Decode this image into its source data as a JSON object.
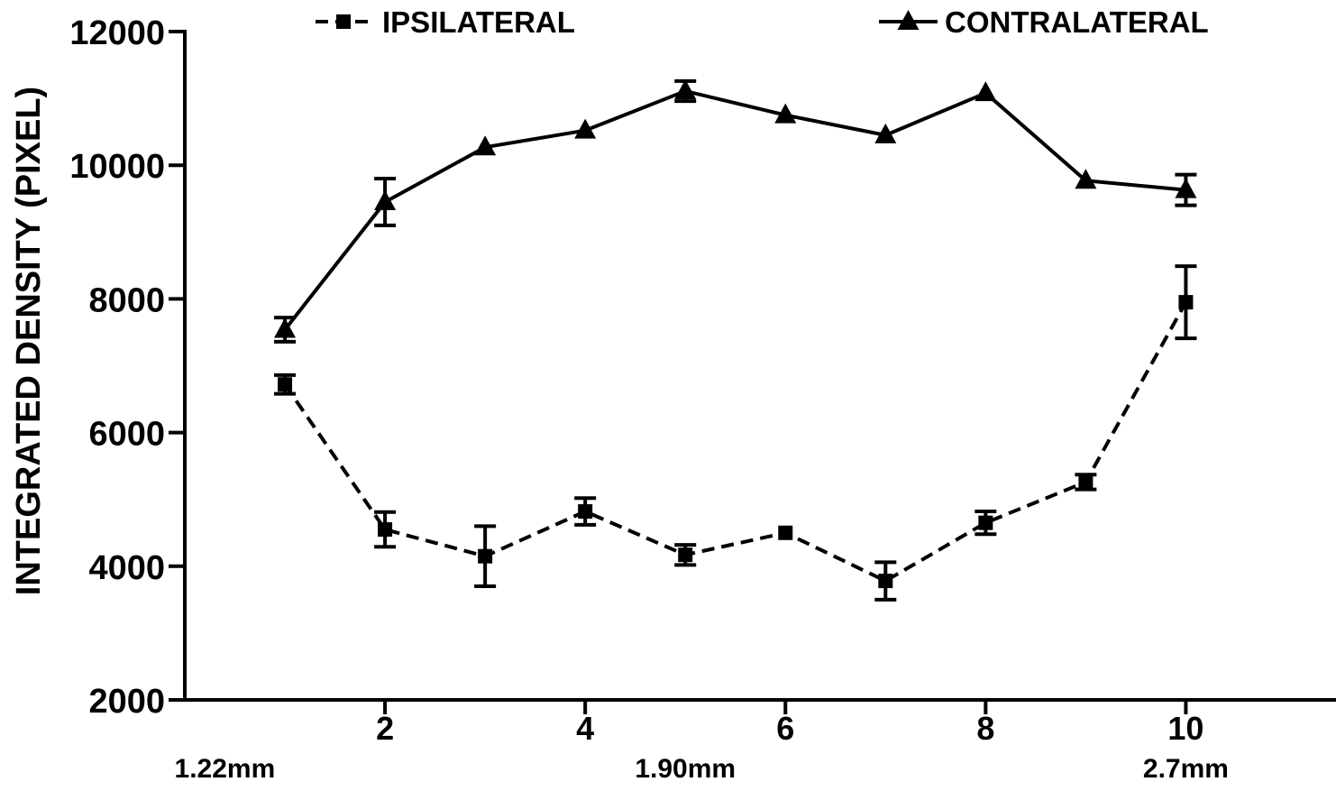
{
  "chart_data": {
    "type": "line",
    "ylabel": "INTEGRATED DENSITY (PIXEL)",
    "xlim": [
      0,
      11.5
    ],
    "ylim": [
      2000,
      12000
    ],
    "x_ticks": [
      2,
      4,
      6,
      8,
      10
    ],
    "y_ticks": [
      2000,
      4000,
      6000,
      8000,
      10000,
      12000
    ],
    "x_annotations": [
      {
        "x": 0.4,
        "text": "1.22mm"
      },
      {
        "x": 5,
        "text": "1.90mm"
      },
      {
        "x": 10,
        "text": "2.7mm"
      }
    ],
    "legend_position": "top",
    "grid": false,
    "series": [
      {
        "name": "IPSILATERAL",
        "line_style": "dashed",
        "marker": "square",
        "color": "#000000",
        "x": [
          1,
          2,
          3,
          4,
          5,
          6,
          7,
          8,
          9,
          10
        ],
        "y": [
          6720,
          4550,
          4150,
          4820,
          4170,
          4500,
          3780,
          4650,
          5260,
          7950
        ],
        "err": [
          140,
          260,
          450,
          200,
          150,
          0,
          280,
          170,
          110,
          540
        ]
      },
      {
        "name": "CONTRALATERAL",
        "line_style": "solid",
        "marker": "triangle",
        "color": "#000000",
        "x": [
          1,
          2,
          3,
          4,
          5,
          6,
          7,
          8,
          9,
          10
        ],
        "y": [
          7540,
          9450,
          10270,
          10520,
          11110,
          10750,
          10450,
          11080,
          9770,
          9630
        ],
        "err": [
          180,
          350,
          0,
          0,
          150,
          0,
          0,
          0,
          0,
          230
        ]
      }
    ]
  }
}
